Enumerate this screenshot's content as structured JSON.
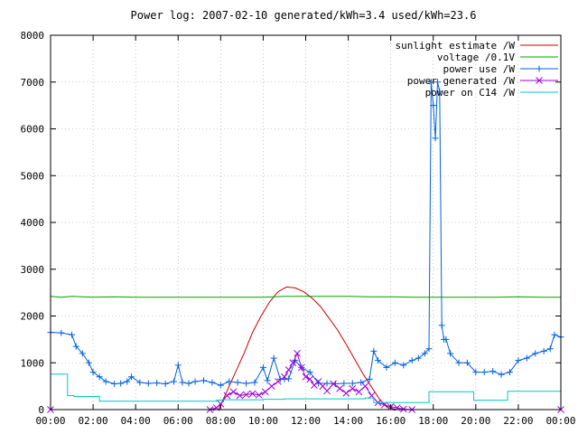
{
  "chart_data": {
    "type": "line",
    "title": "Power log: 2007-02-10 generated/kWh=3.4 used/kWh=23.6",
    "xlabel": "",
    "ylabel": "",
    "xlim": [
      0,
      24
    ],
    "ylim": [
      0,
      8000
    ],
    "x_ticks": [
      {
        "value": 0,
        "label": "00:00"
      },
      {
        "value": 2,
        "label": "02:00"
      },
      {
        "value": 4,
        "label": "04:00"
      },
      {
        "value": 6,
        "label": "06:00"
      },
      {
        "value": 8,
        "label": "08:00"
      },
      {
        "value": 10,
        "label": "10:00"
      },
      {
        "value": 12,
        "label": "12:00"
      },
      {
        "value": 14,
        "label": "14:00"
      },
      {
        "value": 16,
        "label": "16:00"
      },
      {
        "value": 18,
        "label": "18:00"
      },
      {
        "value": 20,
        "label": "20:00"
      },
      {
        "value": 22,
        "label": "22:00"
      },
      {
        "value": 24,
        "label": "00:00"
      }
    ],
    "y_ticks": [
      {
        "value": 0,
        "label": "0"
      },
      {
        "value": 1000,
        "label": "1000"
      },
      {
        "value": 2000,
        "label": "2000"
      },
      {
        "value": 3000,
        "label": "3000"
      },
      {
        "value": 4000,
        "label": "4000"
      },
      {
        "value": 5000,
        "label": "5000"
      },
      {
        "value": 6000,
        "label": "6000"
      },
      {
        "value": 7000,
        "label": "7000"
      },
      {
        "value": 8000,
        "label": "8000"
      }
    ],
    "grid": true,
    "legend_position": "top-right",
    "series": [
      {
        "name": "sunlight estimate /W",
        "color": "#cc0000",
        "marker": "none",
        "x": [
          7.9,
          8.3,
          8.7,
          9.1,
          9.5,
          9.9,
          10.3,
          10.7,
          11.1,
          11.5,
          11.9,
          12.3,
          12.7,
          13.1,
          13.5,
          13.9,
          14.3,
          14.7,
          15.1,
          15.5,
          15.9,
          16.3
        ],
        "values": [
          0,
          400,
          800,
          1200,
          1650,
          2000,
          2300,
          2520,
          2620,
          2600,
          2520,
          2380,
          2200,
          1950,
          1700,
          1400,
          1080,
          760,
          480,
          200,
          40,
          0
        ]
      },
      {
        "name": "voltage /0.1V",
        "color": "#00a000",
        "marker": "none",
        "x": [
          0,
          0.5,
          1,
          2,
          3,
          4,
          5,
          6,
          7,
          8,
          9,
          10,
          11,
          12,
          13,
          14,
          15,
          16,
          17,
          18,
          19,
          20,
          21,
          22,
          23,
          24
        ],
        "values": [
          2420,
          2400,
          2420,
          2400,
          2410,
          2400,
          2400,
          2400,
          2400,
          2400,
          2400,
          2400,
          2420,
          2420,
          2420,
          2420,
          2410,
          2410,
          2400,
          2400,
          2400,
          2400,
          2400,
          2410,
          2400,
          2400
        ]
      },
      {
        "name": "power use /W",
        "color": "#0060e0",
        "marker": "plus",
        "x": [
          0,
          0.5,
          1,
          1.2,
          1.5,
          1.8,
          2.0,
          2.3,
          2.6,
          3.0,
          3.3,
          3.6,
          3.8,
          4.2,
          4.6,
          5.0,
          5.4,
          5.8,
          6.0,
          6.2,
          6.5,
          6.8,
          7.2,
          7.6,
          8.0,
          8.4,
          8.8,
          9.2,
          9.6,
          10.0,
          10.2,
          10.5,
          10.8,
          11.0,
          11.2,
          11.5,
          11.8,
          12.2,
          12.6,
          13.0,
          13.4,
          13.8,
          14.2,
          14.6,
          15.0,
          15.2,
          15.4,
          15.8,
          16.2,
          16.6,
          17.0,
          17.3,
          17.6,
          17.8,
          17.9,
          18.0,
          18.1,
          18.2,
          18.3,
          18.4,
          18.5,
          18.6,
          18.8,
          19.2,
          19.6,
          20.0,
          20.4,
          20.8,
          21.2,
          21.6,
          22.0,
          22.4,
          22.8,
          23.2,
          23.5,
          23.7,
          24.0
        ],
        "values": [
          1650,
          1640,
          1600,
          1350,
          1200,
          1000,
          800,
          700,
          600,
          550,
          560,
          600,
          700,
          580,
          560,
          570,
          550,
          600,
          950,
          580,
          560,
          600,
          620,
          580,
          520,
          600,
          580,
          560,
          580,
          900,
          620,
          1100,
          650,
          650,
          660,
          1050,
          900,
          800,
          560,
          560,
          550,
          560,
          560,
          580,
          650,
          1250,
          1050,
          900,
          1000,
          950,
          1050,
          1100,
          1200,
          1300,
          7000,
          6500,
          5800,
          7000,
          6800,
          1800,
          1500,
          1500,
          1200,
          1000,
          1000,
          800,
          800,
          820,
          750,
          800,
          1050,
          1100,
          1200,
          1250,
          1300,
          1600,
          1550
        ]
      },
      {
        "name": "power generated /W",
        "color": "#a000e0",
        "marker": "cross",
        "x": [
          0,
          7.5,
          7.8,
          8.0,
          8.3,
          8.6,
          8.9,
          9.2,
          9.5,
          9.8,
          10.1,
          10.4,
          10.7,
          11.0,
          11.2,
          11.4,
          11.6,
          11.8,
          12.0,
          12.2,
          12.4,
          12.6,
          12.8,
          13.0,
          13.3,
          13.6,
          13.9,
          14.2,
          14.5,
          14.8,
          15.1,
          15.4,
          15.7,
          16.0,
          16.3,
          16.6,
          17.0,
          24.0
        ],
        "values": [
          0,
          0,
          40,
          120,
          300,
          380,
          300,
          320,
          340,
          310,
          380,
          500,
          600,
          700,
          850,
          1000,
          1200,
          900,
          700,
          650,
          520,
          600,
          500,
          400,
          550,
          450,
          350,
          450,
          380,
          500,
          300,
          150,
          100,
          60,
          40,
          10,
          0,
          0
        ]
      },
      {
        "name": "power on C14 /W",
        "color": "#00c8c8",
        "marker": "none",
        "x": [
          0,
          0.8,
          0.8,
          1.1,
          1.1,
          2.3,
          2.3,
          7.8,
          7.8,
          8.0,
          8.0,
          10.0,
          10.0,
          11.0,
          11.0,
          14.8,
          14.8,
          15.2,
          15.2,
          17.8,
          17.8,
          19.9,
          19.9,
          21.5,
          21.5,
          24.0
        ],
        "values": [
          760,
          760,
          300,
          300,
          280,
          280,
          180,
          180,
          200,
          200,
          210,
          210,
          220,
          220,
          230,
          230,
          250,
          250,
          150,
          150,
          380,
          380,
          200,
          200,
          390,
          390
        ]
      }
    ]
  }
}
